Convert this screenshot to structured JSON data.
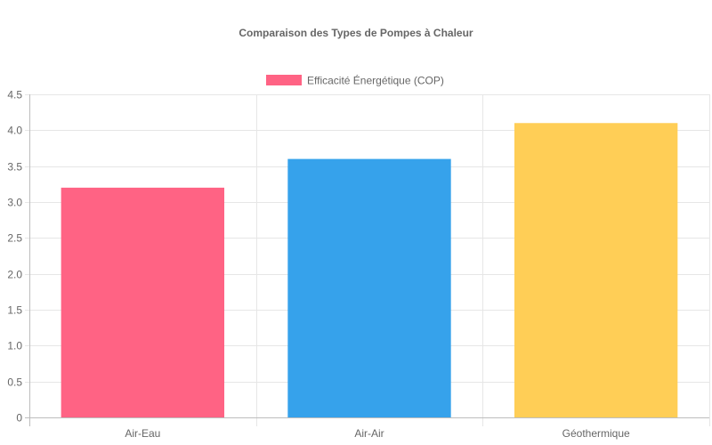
{
  "chart_data": {
    "type": "bar",
    "title": "Comparaison des Types de Pompes à Chaleur",
    "categories": [
      "Air-Eau",
      "Air-Air",
      "Géothermique"
    ],
    "series": [
      {
        "name": "Efficacité Énergétique (COP)",
        "values": [
          3.2,
          3.6,
          4.1
        ],
        "colors": [
          "#ff6384",
          "#36a2eb",
          "#ffce56"
        ]
      }
    ],
    "ylim": [
      0,
      4.5
    ],
    "yticks": [
      "0",
      "0.5",
      "1.0",
      "1.5",
      "2.0",
      "2.5",
      "3.0",
      "3.5",
      "4.0",
      "4.5"
    ],
    "grid": true,
    "legend_position": "top-center",
    "legend_color": "#ff6384"
  }
}
